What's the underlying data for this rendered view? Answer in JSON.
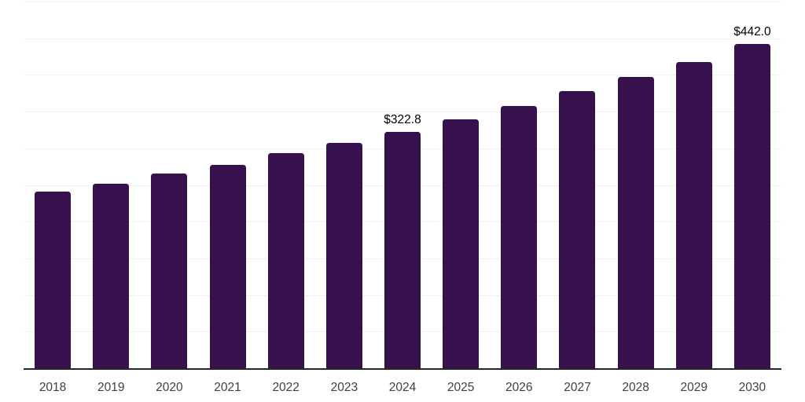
{
  "chart_data": {
    "type": "bar",
    "title": "",
    "xlabel": "",
    "ylabel": "",
    "categories": [
      "2018",
      "2019",
      "2020",
      "2021",
      "2022",
      "2023",
      "2024",
      "2025",
      "2026",
      "2027",
      "2028",
      "2029",
      "2030"
    ],
    "values": [
      241.1,
      252.0,
      265.5,
      277.7,
      293.0,
      307.5,
      322.8,
      339.8,
      358.0,
      377.9,
      397.0,
      418.0,
      442.0
    ],
    "data_labels": {
      "2024": "$322.8",
      "2030": "$442.0"
    },
    "value_prefix": "$",
    "ylim": [
      0,
      500
    ],
    "tick_interval": 50,
    "grid": true,
    "legend_position": "none",
    "colors": {
      "bar": "#36114e",
      "grid": "#f0f0f0",
      "axis": "#262626",
      "tick_label": "#404040",
      "data_label": "#000000",
      "background": "#ffffff"
    }
  }
}
